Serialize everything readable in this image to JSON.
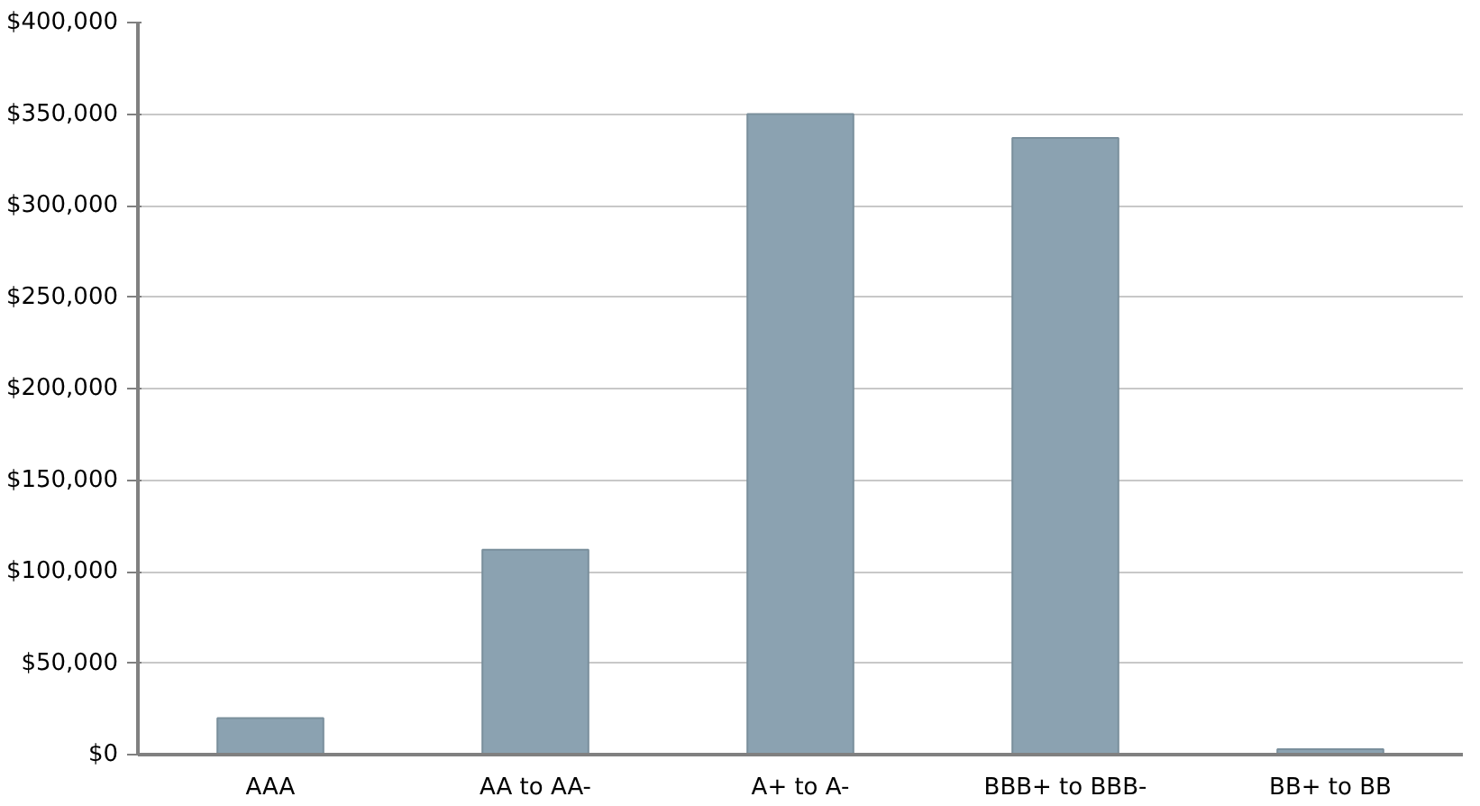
{
  "chart_data": {
    "type": "bar",
    "categories": [
      "AAA",
      "AA to AA-",
      "A+ to A-",
      "BBB+ to BBB-",
      "BB+ to BB"
    ],
    "values": [
      20000,
      112000,
      350000,
      337000,
      3000
    ],
    "color": "#8ba2b1",
    "ylim": [
      0,
      400000
    ],
    "yticks": [
      {
        "value": 0,
        "label": "$0"
      },
      {
        "value": 50000,
        "label": "$50,000"
      },
      {
        "value": 100000,
        "label": "$100,000"
      },
      {
        "value": 150000,
        "label": "$150,000"
      },
      {
        "value": 200000,
        "label": "$200,000"
      },
      {
        "value": 250000,
        "label": "$250,000"
      },
      {
        "value": 300000,
        "label": "$300,000"
      },
      {
        "value": 350000,
        "label": "$350,000"
      },
      {
        "value": 400000,
        "label": "$400,000"
      }
    ],
    "grid": "y"
  }
}
